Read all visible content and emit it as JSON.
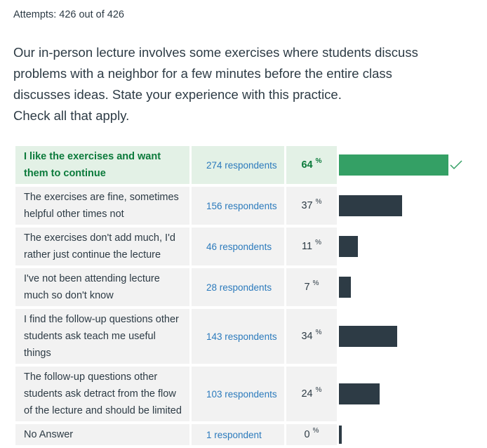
{
  "attempts": "Attempts: 426 out of 426",
  "question": {
    "lines": [
      "Our in-person lecture involves some exercises where students discuss",
      "problems with a neighbor for a few minutes before the entire class",
      "discusses ideas. State your experience with this practice.",
      "Check all that apply."
    ]
  },
  "answers": [
    {
      "text": "I like the exercises and want them to continue",
      "respondents": "274 respondents",
      "percent": "64",
      "pct_sign": "%",
      "fraction": 0.64,
      "correct": true
    },
    {
      "text": "The exercises are fine, sometimes helpful other times not",
      "respondents": "156 respondents",
      "percent": "37",
      "pct_sign": "%",
      "fraction": 0.37,
      "correct": false
    },
    {
      "text": "The exercises don't add much, I'd rather just continue the lecture",
      "respondents": "46 respondents",
      "percent": "11",
      "pct_sign": "%",
      "fraction": 0.11,
      "correct": false
    },
    {
      "text": "I've not been attending lecture much so don't know",
      "respondents": "28 respondents",
      "percent": "7",
      "pct_sign": "%",
      "fraction": 0.07,
      "correct": false
    },
    {
      "text": "I find the follow-up questions other students ask teach me useful things",
      "respondents": "143 respondents",
      "percent": "34",
      "pct_sign": "%",
      "fraction": 0.34,
      "correct": false
    },
    {
      "text": "The follow-up questions other students ask detract from the flow of the lecture and should be limited",
      "respondents": "103 respondents",
      "percent": "24",
      "pct_sign": "%",
      "fraction": 0.24,
      "correct": false
    },
    {
      "text": "No Answer",
      "respondents": "1 respondent",
      "percent": "0",
      "pct_sign": "%",
      "fraction": 0.0,
      "correct": false
    }
  ],
  "colors": {
    "bar": "#2d3b45",
    "bar_correct": "#34a065",
    "correct_bg": "#e3f1e6",
    "row_bg": "#f2f2f2",
    "link": "#2b7abc"
  }
}
